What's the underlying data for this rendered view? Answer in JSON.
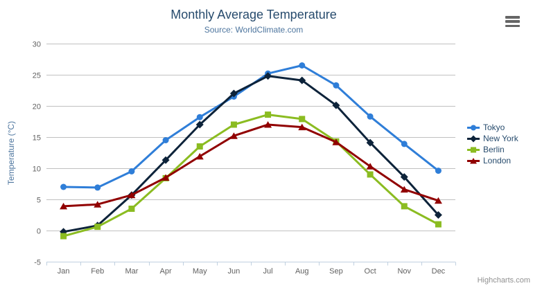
{
  "chart_data": {
    "type": "line",
    "title": "Monthly Average Temperature",
    "subtitle": "Source: WorldClimate.com",
    "xlabel": "",
    "ylabel": "Temperature (°C)",
    "categories": [
      "Jan",
      "Feb",
      "Mar",
      "Apr",
      "May",
      "Jun",
      "Jul",
      "Aug",
      "Sep",
      "Oct",
      "Nov",
      "Dec"
    ],
    "ylim": [
      -5,
      30
    ],
    "ytick_interval": 5,
    "grid": true,
    "legend_position": "right",
    "series": [
      {
        "name": "Tokyo",
        "color": "#2f7ed8",
        "marker": "circle",
        "values": [
          7.0,
          6.9,
          9.5,
          14.5,
          18.2,
          21.5,
          25.2,
          26.5,
          23.3,
          18.3,
          13.9,
          9.6
        ]
      },
      {
        "name": "New York",
        "color": "#0d233a",
        "marker": "diamond",
        "values": [
          -0.2,
          0.8,
          5.7,
          11.3,
          17.0,
          22.0,
          24.8,
          24.1,
          20.1,
          14.1,
          8.6,
          2.5
        ]
      },
      {
        "name": "Berlin",
        "color": "#8bbc21",
        "marker": "square",
        "values": [
          -0.9,
          0.6,
          3.5,
          8.4,
          13.5,
          17.0,
          18.6,
          17.9,
          14.3,
          9.0,
          3.9,
          1.0
        ]
      },
      {
        "name": "London",
        "color": "#910000",
        "marker": "triangle",
        "values": [
          3.9,
          4.2,
          5.7,
          8.5,
          11.9,
          15.2,
          17.0,
          16.6,
          14.2,
          10.3,
          6.6,
          4.8
        ]
      }
    ],
    "axis_colors": {
      "grid_line": "#c0c0c0",
      "axis_line": "#c0d0e0",
      "tick_label": "#606060"
    }
  },
  "credits": {
    "label": "Highcharts.com"
  }
}
